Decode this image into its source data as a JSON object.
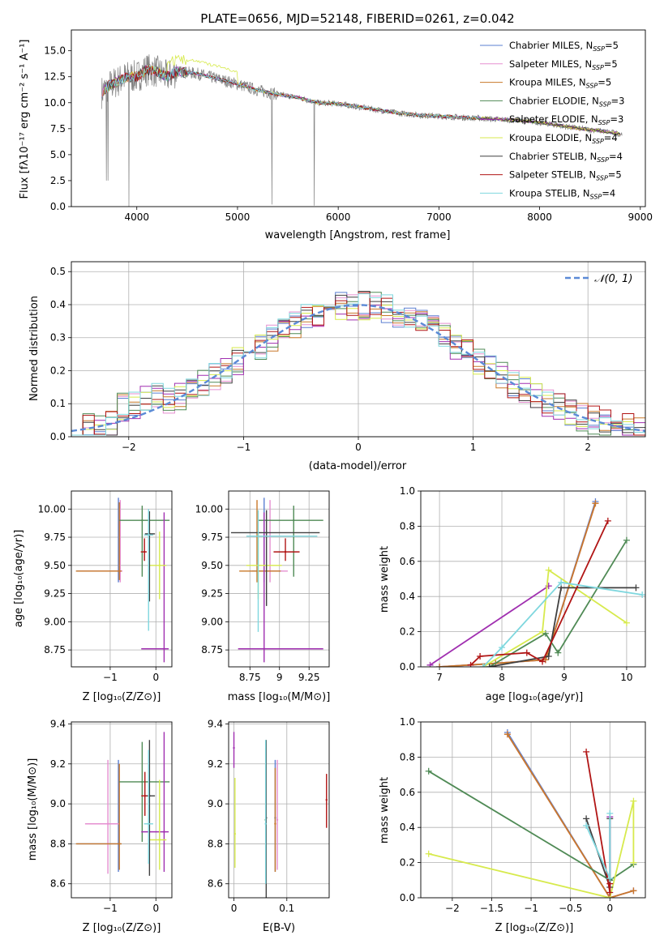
{
  "page": {
    "title": "PLATE=0656, MJD=52148, FIBERID=0261, z=0.042"
  },
  "colors": {
    "Chabrier MILES": "#5b7fd1",
    "Salpeter MILES": "#e58fd0",
    "Kroupa MILES": "#c8782a",
    "Chabrier ELODIE": "#4f8a55",
    "Salpeter ELODIE": "#a02fb0",
    "Kroupa ELODIE": "#d7ea4d",
    "Chabrier STELIB": "#404040",
    "Salpeter STELIB": "#b11515",
    "Kroupa STELIB": "#7fd7de"
  },
  "chart_data": [
    {
      "type": "line",
      "title": "PLATE=0656, MJD=52148, FIBERID=0261, z=0.042",
      "xlabel": "wavelength [Angstrom, rest frame]",
      "ylabel": "Flux [fλ10⁻¹⁷ erg cm⁻² s⁻¹ A⁻¹]",
      "xlim": [
        3350,
        9050
      ],
      "ylim": [
        0,
        17
      ],
      "xticks": [
        4000,
        5000,
        6000,
        7000,
        8000,
        9000
      ],
      "yticks": [
        0.0,
        2.5,
        5.0,
        7.5,
        10.0,
        12.5,
        15.0
      ],
      "legend_position": "top-right",
      "legend": [
        {
          "name": "Chabrier MILES",
          "nssp": "=5"
        },
        {
          "name": "Salpeter MILES",
          "nssp": "=5"
        },
        {
          "name": "Kroupa MILES",
          "nssp": "=5"
        },
        {
          "name": "Chabrier ELODIE",
          "nssp": "=3"
        },
        {
          "name": "Salpeter ELODIE",
          "nssp": "=3"
        },
        {
          "name": "Kroupa ELODIE",
          "nssp": "=4"
        },
        {
          "name": "Chabrier STELIB",
          "nssp": "=4"
        },
        {
          "name": "Salpeter STELIB",
          "nssp": "=5"
        },
        {
          "name": "Kroupa STELIB",
          "nssp": "=4"
        }
      ],
      "data_spectrum": {
        "color": "gray",
        "x": [
          3650,
          3700,
          3800,
          3900,
          4000,
          4100,
          4200,
          4300,
          4400,
          4600,
          4800,
          5000,
          5200,
          5400,
          5600,
          5800,
          6000,
          6200,
          6400,
          6600,
          6800,
          7000,
          7200,
          7400,
          7600,
          7800,
          8000,
          8200,
          8400,
          8600,
          8800
        ],
        "y": [
          11.0,
          11.5,
          12.0,
          12.5,
          12.5,
          13.2,
          13.0,
          12.5,
          13.0,
          12.8,
          12.3,
          11.8,
          11.2,
          10.8,
          10.5,
          10.0,
          9.9,
          9.6,
          9.3,
          9.0,
          8.8,
          8.7,
          8.6,
          8.5,
          8.4,
          8.3,
          8.1,
          7.8,
          7.5,
          7.3,
          7.0
        ]
      }
    },
    {
      "type": "line",
      "xlabel": "(data-model)/error",
      "ylabel": "Normed distribution",
      "xlim": [
        -2.5,
        2.5
      ],
      "ylim": [
        0,
        0.53
      ],
      "xticks": [
        -2,
        -1,
        0,
        1,
        2
      ],
      "yticks": [
        0.0,
        0.1,
        0.2,
        0.3,
        0.4,
        0.5
      ],
      "legend_position": "top-right",
      "legend": [
        {
          "name": "𝒩(0, 1)",
          "style": "dashed"
        }
      ],
      "histogram_bin_width": 0.1,
      "histogram_values": [
        0.02,
        0.03,
        0.05,
        0.08,
        0.1,
        0.11,
        0.12,
        0.14,
        0.18,
        0.21,
        0.2,
        0.24,
        0.26,
        0.28,
        0.31,
        0.34,
        0.36,
        0.39,
        0.4,
        0.42,
        0.4,
        0.41,
        0.4,
        0.38,
        0.36,
        0.32,
        0.3,
        0.28,
        0.24,
        0.22,
        0.2,
        0.17,
        0.14,
        0.12,
        0.1,
        0.08,
        0.06,
        0.05,
        0.04,
        0.03,
        0.02,
        0.02,
        0.02,
        0.02,
        0.02,
        0.02,
        0.02,
        0.02,
        0.02,
        0.02
      ]
    },
    {
      "type": "scatter",
      "xlabel": "Z [log₁₀(Z/Z⊙)]",
      "ylabel": "age  [log₁₀(age/yr)]",
      "xlim": [
        -1.85,
        0.35
      ],
      "ylim": [
        8.6,
        10.16
      ],
      "xticks": [
        -1,
        0
      ],
      "yticks": [
        8.75,
        9.0,
        9.25,
        9.5,
        9.75,
        10.0
      ],
      "points": [
        {
          "series": "Chabrier MILES",
          "x": -0.82,
          "y": 9.45,
          "xerr": [
            0.92,
            0.06
          ],
          "yerr": [
            0.1,
            0.65
          ]
        },
        {
          "series": "Salpeter MILES",
          "x": -0.78,
          "y": 9.45,
          "xerr": [
            0.9,
            0.05
          ],
          "yerr": [
            0.1,
            0.63
          ]
        },
        {
          "series": "Kroupa MILES",
          "x": -0.8,
          "y": 9.45,
          "xerr": [
            0.95,
            0.05
          ],
          "yerr": [
            0.08,
            0.61
          ]
        },
        {
          "series": "Chabrier ELODIE",
          "x": -0.3,
          "y": 9.9,
          "xerr": [
            0.5,
            0.6
          ],
          "yerr": [
            0.5,
            0.13
          ]
        },
        {
          "series": "Salpeter ELODIE",
          "x": 0.18,
          "y": 8.76,
          "xerr": [
            0.5,
            0.1
          ],
          "yerr": [
            0.12,
            1.21
          ]
        },
        {
          "series": "Kroupa ELODIE",
          "x": 0.08,
          "y": 9.5,
          "xerr": [
            0.25,
            0.15
          ],
          "yerr": [
            0.3,
            0.3
          ]
        },
        {
          "series": "Chabrier STELIB",
          "x": -0.14,
          "y": 9.78,
          "xerr": [
            0.1,
            0.12
          ],
          "yerr": [
            0.6,
            0.2
          ]
        },
        {
          "series": "Salpeter STELIB",
          "x": -0.25,
          "y": 9.62,
          "xerr": [
            0.08,
            0.05
          ],
          "yerr": [
            0.08,
            0.12
          ]
        },
        {
          "series": "Kroupa STELIB",
          "x": -0.16,
          "y": 9.77,
          "xerr": [
            0.1,
            0.1
          ],
          "yerr": [
            0.85,
            0.23
          ]
        }
      ]
    },
    {
      "type": "scatter",
      "xlabel": "mass [log₁₀(M/M⊙)]",
      "xlim": [
        8.57,
        9.42
      ],
      "ylim": [
        8.6,
        10.16
      ],
      "xticks": [
        8.75,
        9.0,
        9.25
      ],
      "yticks": [
        8.75,
        9.0,
        9.25,
        9.5,
        9.75,
        10.0
      ],
      "points": [
        {
          "series": "Chabrier MILES",
          "x": 8.87,
          "y": 9.45,
          "xerr": [
            0.1,
            0.15
          ],
          "yerr": [
            0.1,
            0.65
          ]
        },
        {
          "series": "Salpeter MILES",
          "x": 8.92,
          "y": 9.45,
          "xerr": [
            0.1,
            0.15
          ],
          "yerr": [
            0.1,
            0.63
          ]
        },
        {
          "series": "Kroupa MILES",
          "x": 8.81,
          "y": 9.45,
          "xerr": [
            0.15,
            0.2
          ],
          "yerr": [
            0.1,
            0.63
          ]
        },
        {
          "series": "Chabrier ELODIE",
          "x": 9.12,
          "y": 9.9,
          "xerr": [
            0.3,
            0.25
          ],
          "yerr": [
            0.5,
            0.13
          ]
        },
        {
          "series": "Salpeter ELODIE",
          "x": 8.87,
          "y": 8.76,
          "xerr": [
            0.22,
            0.5
          ],
          "yerr": [
            0.12,
            1.21
          ]
        },
        {
          "series": "Kroupa ELODIE",
          "x": 8.82,
          "y": 9.5,
          "xerr": [
            0.1,
            0.2
          ],
          "yerr": [
            0.3,
            0.3
          ]
        },
        {
          "series": "Chabrier STELIB",
          "x": 8.89,
          "y": 9.79,
          "xerr": [
            0.3,
            0.45
          ],
          "yerr": [
            0.65,
            0.2
          ]
        },
        {
          "series": "Salpeter STELIB",
          "x": 9.05,
          "y": 9.62,
          "xerr": [
            0.1,
            0.12
          ],
          "yerr": [
            0.08,
            0.12
          ]
        },
        {
          "series": "Kroupa STELIB",
          "x": 8.82,
          "y": 9.76,
          "xerr": [
            0.1,
            0.5
          ],
          "yerr": [
            0.85,
            0.23
          ]
        }
      ]
    },
    {
      "type": "line",
      "xlabel": "age  [log₁₀(age/yr)]",
      "ylabel": "mass weight",
      "xlim": [
        6.7,
        10.3
      ],
      "ylim": [
        0,
        1.0
      ],
      "xticks": [
        7,
        8,
        9,
        10
      ],
      "yticks": [
        0.0,
        0.2,
        0.4,
        0.6,
        0.8,
        1.0
      ],
      "series": [
        {
          "name": "Chabrier MILES",
          "x": [
            7.0,
            7.9,
            8.7,
            9.5
          ],
          "y": [
            0.0,
            0.02,
            0.04,
            0.94
          ]
        },
        {
          "name": "Salpeter MILES",
          "x": [
            7.0,
            7.9,
            8.7,
            9.5
          ],
          "y": [
            0.0,
            0.02,
            0.04,
            0.93
          ]
        },
        {
          "name": "Kroupa MILES",
          "x": [
            7.0,
            7.9,
            8.7,
            9.5
          ],
          "y": [
            0.0,
            0.02,
            0.04,
            0.93
          ]
        },
        {
          "name": "Chabrier ELODIE",
          "x": [
            7.8,
            8.7,
            8.9,
            10.0
          ],
          "y": [
            0.0,
            0.19,
            0.08,
            0.72
          ]
        },
        {
          "name": "Salpeter ELODIE",
          "x": [
            6.85,
            8.75
          ],
          "y": [
            0.01,
            0.46
          ]
        },
        {
          "name": "Kroupa ELODIE",
          "x": [
            7.7,
            8.65,
            8.75,
            10.0
          ],
          "y": [
            0.0,
            0.2,
            0.55,
            0.25
          ]
        },
        {
          "name": "Chabrier STELIB",
          "x": [
            7.8,
            8.75,
            8.95,
            10.15
          ],
          "y": [
            0.0,
            0.06,
            0.45,
            0.45
          ]
        },
        {
          "name": "Salpeter STELIB",
          "x": [
            7.5,
            7.65,
            8.4,
            8.65,
            9.7
          ],
          "y": [
            0.01,
            0.06,
            0.08,
            0.03,
            0.83
          ]
        },
        {
          "name": "Kroupa STELIB",
          "x": [
            7.7,
            8.0,
            8.95,
            10.25
          ],
          "y": [
            0.0,
            0.11,
            0.48,
            0.41
          ]
        }
      ]
    },
    {
      "type": "scatter",
      "xlabel": "Z [log₁₀(Z/Z⊙)]",
      "ylabel": "mass [log₁₀(M/M⊙)]",
      "xlim": [
        -1.85,
        0.35
      ],
      "ylim": [
        8.53,
        9.41
      ],
      "xticks": [
        -1,
        0
      ],
      "yticks": [
        8.6,
        8.8,
        9.0,
        9.2,
        9.4
      ],
      "points": [
        {
          "series": "Chabrier MILES",
          "x": -0.82,
          "y": 8.8,
          "xerr": [
            0.92,
            0.06
          ],
          "yerr": [
            0.14,
            0.42
          ]
        },
        {
          "series": "Salpeter MILES",
          "x": -1.05,
          "y": 8.9,
          "xerr": [
            0.5,
            0.25
          ],
          "yerr": [
            0.25,
            0.32
          ]
        },
        {
          "series": "Kroupa MILES",
          "x": -0.8,
          "y": 8.8,
          "xerr": [
            0.95,
            0.05
          ],
          "yerr": [
            0.13,
            0.4
          ]
        },
        {
          "series": "Chabrier ELODIE",
          "x": -0.3,
          "y": 9.11,
          "xerr": [
            0.5,
            0.6
          ],
          "yerr": [
            0.3,
            0.2
          ]
        },
        {
          "series": "Salpeter ELODIE",
          "x": 0.18,
          "y": 8.86,
          "xerr": [
            0.5,
            0.1
          ],
          "yerr": [
            0.2,
            0.5
          ]
        },
        {
          "series": "Kroupa ELODIE",
          "x": 0.08,
          "y": 8.82,
          "xerr": [
            0.25,
            0.15
          ],
          "yerr": [
            0.15,
            0.3
          ]
        },
        {
          "series": "Chabrier STELIB",
          "x": -0.14,
          "y": 9.04,
          "xerr": [
            0.1,
            0.12
          ],
          "yerr": [
            0.4,
            0.28
          ]
        },
        {
          "series": "Salpeter STELIB",
          "x": -0.24,
          "y": 9.04,
          "xerr": [
            0.08,
            0.05
          ],
          "yerr": [
            0.1,
            0.12
          ]
        },
        {
          "series": "Kroupa STELIB",
          "x": -0.16,
          "y": 8.9,
          "xerr": [
            0.1,
            0.1
          ],
          "yerr": [
            0.2,
            0.37
          ]
        }
      ]
    },
    {
      "type": "scatter",
      "xlabel": "E(B-V)",
      "xlim": [
        -0.01,
        0.18
      ],
      "ylim": [
        8.53,
        9.41
      ],
      "xticks": [
        0.0,
        0.1
      ],
      "yticks": [
        8.6,
        8.8,
        9.0,
        9.2,
        9.4
      ],
      "points": [
        {
          "series": "Chabrier MILES",
          "x": 0.078,
          "y": 8.93,
          "yerr": [
            0.27,
            0.29
          ]
        },
        {
          "series": "Salpeter MILES",
          "x": 0.082,
          "y": 8.92,
          "yerr": [
            0.25,
            0.3
          ]
        },
        {
          "series": "Kroupa MILES",
          "x": 0.078,
          "y": 8.9,
          "yerr": [
            0.24,
            0.28
          ]
        },
        {
          "series": "Chabrier ELODIE",
          "x": 0.06,
          "y": 8.92,
          "yerr": [
            0.3,
            0.36
          ]
        },
        {
          "series": "Salpeter ELODIE",
          "x": 0.0,
          "y": 9.28,
          "yerr": [
            0.1,
            0.08
          ]
        },
        {
          "series": "Kroupa ELODIE",
          "x": 0.002,
          "y": 8.85,
          "yerr": [
            0.17,
            0.28
          ]
        },
        {
          "series": "Chabrier STELIB",
          "x": 0.061,
          "y": 8.93,
          "yerr": [
            0.4,
            0.39
          ]
        },
        {
          "series": "Salpeter STELIB",
          "x": 0.175,
          "y": 9.02,
          "yerr": [
            0.14,
            0.13
          ]
        },
        {
          "series": "Kroupa STELIB",
          "x": 0.06,
          "y": 8.9,
          "yerr": [
            0.3,
            0.42
          ]
        }
      ]
    },
    {
      "type": "line",
      "xlabel": "Z [log₁₀(Z/Z⊙)]",
      "ylabel": "mass weight",
      "xlim": [
        -2.4,
        0.45
      ],
      "ylim": [
        0,
        1.0
      ],
      "xticks": [
        -2.0,
        -1.5,
        -1.0,
        -0.5,
        0.0
      ],
      "yticks": [
        0.0,
        0.2,
        0.4,
        0.6,
        0.8,
        1.0
      ],
      "series": [
        {
          "name": "Chabrier MILES",
          "x": [
            -1.3,
            0.0,
            0.3
          ],
          "y": [
            0.94,
            0.0,
            0.04
          ]
        },
        {
          "name": "Salpeter MILES",
          "x": [
            -1.3,
            0.0,
            0.3
          ],
          "y": [
            0.93,
            0.0,
            0.04
          ]
        },
        {
          "name": "Kroupa MILES",
          "x": [
            -1.3,
            0.0,
            0.3
          ],
          "y": [
            0.93,
            0.0,
            0.04
          ]
        },
        {
          "name": "Chabrier ELODIE",
          "x": [
            -2.3,
            0.0,
            0.3
          ],
          "y": [
            0.72,
            0.1,
            0.19
          ]
        },
        {
          "name": "Salpeter ELODIE",
          "x": [
            0.0,
            0.0
          ],
          "y": [
            0.46,
            0.0
          ]
        },
        {
          "name": "Kroupa ELODIE",
          "x": [
            -2.3,
            0.0,
            0.3,
            0.3
          ],
          "y": [
            0.25,
            0.0,
            0.55,
            0.2
          ]
        },
        {
          "name": "Chabrier STELIB",
          "x": [
            -0.3,
            0.0,
            0.0
          ],
          "y": [
            0.45,
            0.06,
            0.45
          ]
        },
        {
          "name": "Salpeter STELIB",
          "x": [
            -0.3,
            0.0,
            0.0
          ],
          "y": [
            0.83,
            0.03,
            0.08
          ]
        },
        {
          "name": "Kroupa STELIB",
          "x": [
            -0.3,
            0.0,
            0.0
          ],
          "y": [
            0.41,
            0.11,
            0.48
          ]
        }
      ]
    }
  ]
}
